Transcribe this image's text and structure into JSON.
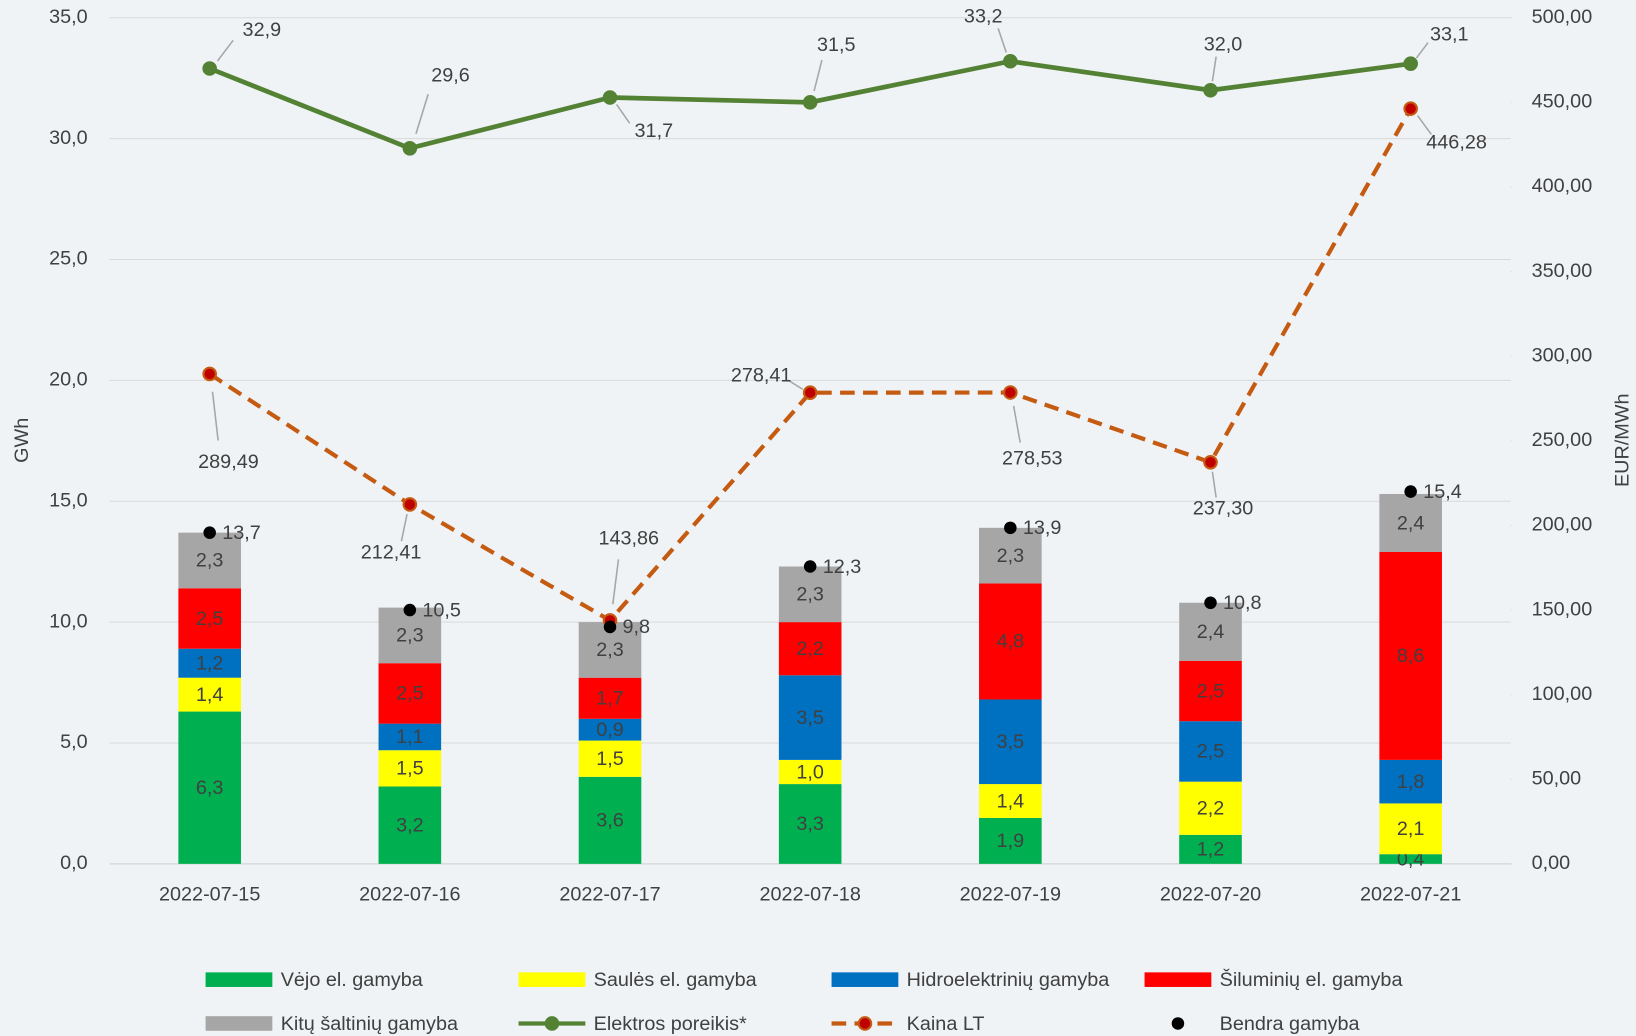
{
  "chart_data": {
    "type": "bar",
    "stacked": true,
    "categories": [
      "2022-07-15",
      "2022-07-16",
      "2022-07-17",
      "2022-07-18",
      "2022-07-19",
      "2022-07-20",
      "2022-07-21"
    ],
    "ylabel": "GWh",
    "y2label": "EUR/MWh",
    "ylim": [
      0,
      35
    ],
    "yticks": [
      {
        "value": 0,
        "label": "0,0"
      },
      {
        "value": 5,
        "label": "5,0"
      },
      {
        "value": 10,
        "label": "10,0"
      },
      {
        "value": 15,
        "label": "15,0"
      },
      {
        "value": 20,
        "label": "20,0"
      },
      {
        "value": 25,
        "label": "25,0"
      },
      {
        "value": 30,
        "label": "30,0"
      },
      {
        "value": 35,
        "label": "35,0"
      }
    ],
    "y2lim": [
      0,
      500
    ],
    "y2ticks": [
      {
        "value": 0,
        "label": "0,00"
      },
      {
        "value": 50,
        "label": "50,00"
      },
      {
        "value": 100,
        "label": "100,00"
      },
      {
        "value": 150,
        "label": "150,00"
      },
      {
        "value": 200,
        "label": "200,00"
      },
      {
        "value": 250,
        "label": "250,00"
      },
      {
        "value": 300,
        "label": "300,00"
      },
      {
        "value": 350,
        "label": "350,00"
      },
      {
        "value": 400,
        "label": "400,00"
      },
      {
        "value": 450,
        "label": "450,00"
      },
      {
        "value": 500,
        "label": "500,00"
      }
    ],
    "grid": true,
    "legend": "bottom",
    "series": [
      {
        "name": "Vėjo el. gamyba",
        "type": "bar",
        "color": "#00b050",
        "values": [
          6.3,
          3.2,
          3.6,
          3.3,
          1.9,
          1.2,
          0.4
        ],
        "value_labels": [
          "6,3",
          "3,2",
          "3,6",
          "3,3",
          "1,9",
          "1,2",
          "0,4"
        ]
      },
      {
        "name": "Saulės el. gamyba",
        "type": "bar",
        "color": "#ffff00",
        "values": [
          1.4,
          1.5,
          1.5,
          1.0,
          1.4,
          2.2,
          2.1
        ],
        "value_labels": [
          "1,4",
          "1,5",
          "1,5",
          "1,0",
          "1,4",
          "2,2",
          "2,1"
        ]
      },
      {
        "name": "Hidroelektrinių gamyba",
        "type": "bar",
        "color": "#0070c0",
        "values": [
          1.2,
          1.1,
          0.9,
          3.5,
          3.5,
          2.5,
          1.8
        ],
        "value_labels": [
          "1,2",
          "1,1",
          "0,9",
          "3,5",
          "3,5",
          "2,5",
          "1,8"
        ]
      },
      {
        "name": "Šiluminių el. gamyba",
        "type": "bar",
        "color": "#ff0000",
        "values": [
          2.5,
          2.5,
          1.7,
          2.2,
          4.8,
          2.5,
          8.6
        ],
        "value_labels": [
          "2,5",
          "2,5",
          "1,7",
          "2,2",
          "4,8",
          "2,5",
          "8,6"
        ]
      },
      {
        "name": "Kitų  šaltinių gamyba",
        "type": "bar",
        "color": "#a6a6a6",
        "values": [
          2.3,
          2.3,
          2.3,
          2.3,
          2.3,
          2.4,
          2.4
        ],
        "value_labels": [
          "2,3",
          "2,3",
          "2,3",
          "2,3",
          "2,3",
          "2,4",
          "2,4"
        ]
      },
      {
        "name": "Elektros poreikis*",
        "type": "line",
        "color": "#548235",
        "values": [
          32.9,
          29.6,
          31.7,
          31.5,
          33.2,
          32.0,
          33.1
        ],
        "value_labels": [
          "32,9",
          "29,6",
          "31,7",
          "31,5",
          "33,2",
          "32,0",
          "33,1"
        ]
      },
      {
        "name": "Kaina LT",
        "type": "line",
        "dashed": true,
        "axis": "y2",
        "color": "#c55a11",
        "marker_color": "#c00000",
        "values": [
          289.49,
          212.41,
          143.86,
          278.41,
          278.53,
          237.3,
          446.28
        ],
        "value_labels": [
          "289,49",
          "212,41",
          "143,86",
          "278,41",
          "278,53",
          "237,30",
          "446,28"
        ]
      },
      {
        "name": "Bendra gamyba",
        "type": "scatter",
        "color": "#000000",
        "values": [
          13.7,
          10.5,
          9.8,
          12.3,
          13.9,
          10.8,
          15.4
        ],
        "value_labels": [
          "13,7",
          "10,5",
          "9,8",
          "12,3",
          "13,9",
          "10,8",
          "15,4"
        ]
      }
    ]
  }
}
